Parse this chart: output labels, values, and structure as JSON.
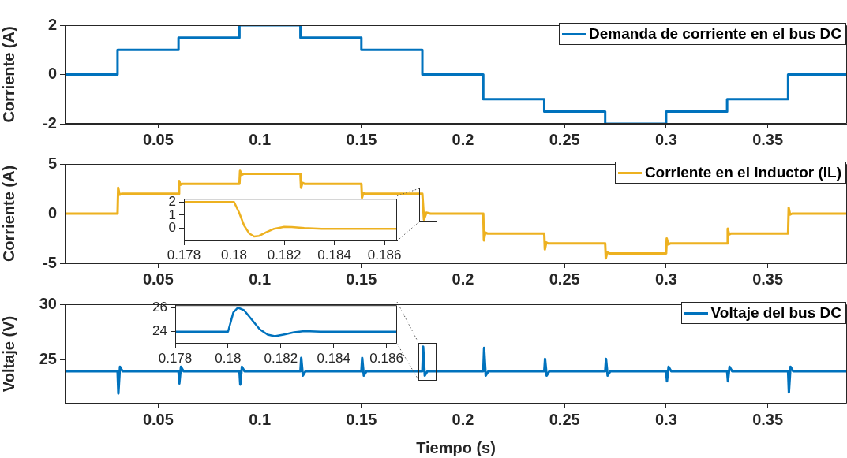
{
  "chart_data": [
    {
      "type": "step",
      "ylabel": "Corriente (A)",
      "xlim": [
        0.004,
        0.389
      ],
      "ylim": [
        -2,
        2
      ],
      "xticks": [
        0.05,
        0.1,
        0.15,
        0.2,
        0.25,
        0.3,
        0.35
      ],
      "yticks": [
        -2,
        0,
        2
      ],
      "legend": "top right",
      "series": [
        {
          "name": "Demanda de corriente en el bus DC",
          "color": "#0072bd",
          "x": [
            0.004,
            0.03,
            0.06,
            0.09,
            0.12,
            0.15,
            0.18,
            0.21,
            0.24,
            0.27,
            0.3,
            0.33,
            0.36,
            0.389
          ],
          "values": [
            0,
            1,
            1.5,
            2,
            1.5,
            1,
            0,
            -1,
            -1.5,
            -2,
            -1.5,
            -1,
            0,
            0
          ]
        }
      ]
    },
    {
      "type": "line",
      "ylabel": "Corriente (A)",
      "xlim": [
        0.004,
        0.389
      ],
      "ylim": [
        -5,
        5
      ],
      "xticks": [
        0.05,
        0.1,
        0.15,
        0.2,
        0.25,
        0.3,
        0.35
      ],
      "yticks": [
        -5,
        0,
        5
      ],
      "legend": "top right",
      "series": [
        {
          "name": "Corriente en el Inductor (IL)",
          "color": "#edb120",
          "x": [
            0.004,
            0.03,
            0.0303,
            0.031,
            0.032,
            0.06,
            0.0603,
            0.061,
            0.062,
            0.09,
            0.0903,
            0.091,
            0.092,
            0.12,
            0.1203,
            0.121,
            0.122,
            0.15,
            0.1503,
            0.151,
            0.152,
            0.18,
            0.1808,
            0.182,
            0.184,
            0.21,
            0.2103,
            0.211,
            0.212,
            0.24,
            0.2403,
            0.241,
            0.242,
            0.27,
            0.2703,
            0.271,
            0.272,
            0.3,
            0.3003,
            0.301,
            0.302,
            0.33,
            0.3303,
            0.331,
            0.332,
            0.36,
            0.3603,
            0.361,
            0.362,
            0.389
          ],
          "values": [
            0,
            0,
            2.6,
            1.9,
            2,
            2,
            3.3,
            2.9,
            3,
            3,
            4.3,
            3.9,
            4,
            4,
            2.6,
            3.1,
            3,
            3,
            1.6,
            2.1,
            2,
            2,
            -0.6,
            0.1,
            0,
            0,
            -2.7,
            -1.9,
            -2,
            -2,
            -3.6,
            -2.9,
            -3,
            -3,
            -4.5,
            -3.9,
            -4,
            -4,
            -2.5,
            -3.1,
            -3,
            -3,
            -1.5,
            -2.1,
            -2,
            -2,
            0.6,
            -0.1,
            0,
            0
          ]
        }
      ]
    },
    {
      "type": "line",
      "xlim": [
        0.178,
        0.1865
      ],
      "ylim": [
        -0.95,
        2.25
      ],
      "xticks": [
        0.178,
        0.18,
        0.182,
        0.184,
        0.186
      ],
      "yticks": [
        0,
        1,
        2
      ],
      "series": [
        {
          "color": "#edb120",
          "x": [
            0.178,
            0.18,
            0.1802,
            0.1804,
            0.1806,
            0.1808,
            0.181,
            0.1813,
            0.1816,
            0.182,
            0.1823,
            0.1828,
            0.1835,
            0.1865
          ],
          "values": [
            2,
            2,
            1.2,
            0.2,
            -0.4,
            -0.65,
            -0.6,
            -0.3,
            -0.05,
            0.1,
            0.08,
            0,
            -0.05,
            -0.05
          ]
        }
      ]
    },
    {
      "type": "line",
      "ylabel": "Voltaje (V)",
      "xlabel": "Tiempo (s)",
      "xlim": [
        0.004,
        0.389
      ],
      "ylim": [
        21.1,
        30
      ],
      "xticks": [
        0.05,
        0.1,
        0.15,
        0.2,
        0.25,
        0.3,
        0.35
      ],
      "yticks": [
        25,
        30
      ],
      "legend": "top right",
      "series": [
        {
          "name": "Voltaje del bus DC",
          "color": "#0072bd",
          "x": [
            0.004,
            0.03,
            0.0304,
            0.0312,
            0.0325,
            0.06,
            0.0604,
            0.0612,
            0.0625,
            0.09,
            0.0904,
            0.0912,
            0.0925,
            0.12,
            0.1204,
            0.1212,
            0.1225,
            0.15,
            0.1504,
            0.1512,
            0.1525,
            0.18,
            0.1804,
            0.1812,
            0.1825,
            0.21,
            0.2104,
            0.2112,
            0.2125,
            0.24,
            0.2404,
            0.2412,
            0.2425,
            0.27,
            0.2704,
            0.2712,
            0.2725,
            0.3,
            0.3004,
            0.3012,
            0.3025,
            0.33,
            0.3304,
            0.3312,
            0.3325,
            0.36,
            0.3604,
            0.3612,
            0.3625,
            0.389
          ],
          "values": [
            24,
            24,
            22,
            24.4,
            24,
            24,
            22.9,
            24.4,
            24,
            24,
            22.8,
            24.4,
            24,
            24,
            25.2,
            23.6,
            24,
            24,
            25.2,
            23.6,
            24,
            24,
            26.2,
            23.6,
            24,
            24,
            26.1,
            23.6,
            24,
            24,
            25.1,
            23.6,
            24,
            24,
            25.1,
            23.6,
            24,
            24,
            23.1,
            24.4,
            24,
            24,
            23.1,
            24.4,
            24,
            24,
            22.1,
            24.4,
            24,
            24
          ]
        }
      ]
    },
    {
      "type": "line",
      "xlim": [
        0.178,
        0.1864
      ],
      "ylim": [
        23,
        26.2
      ],
      "xticks": [
        0.178,
        0.18,
        0.182,
        0.184,
        0.186
      ],
      "yticks": [
        24,
        26
      ],
      "series": [
        {
          "color": "#0072bd",
          "x": [
            0.178,
            0.18,
            0.1801,
            0.1802,
            0.18037,
            0.1806,
            0.1809,
            0.1812,
            0.1815,
            0.18177,
            0.1821,
            0.1825,
            0.1829,
            0.1835,
            0.1864
          ],
          "values": [
            24,
            24,
            24.8,
            25.6,
            26,
            25.8,
            25,
            24.2,
            23.75,
            23.62,
            23.75,
            23.95,
            24.05,
            24,
            24
          ]
        }
      ]
    }
  ]
}
